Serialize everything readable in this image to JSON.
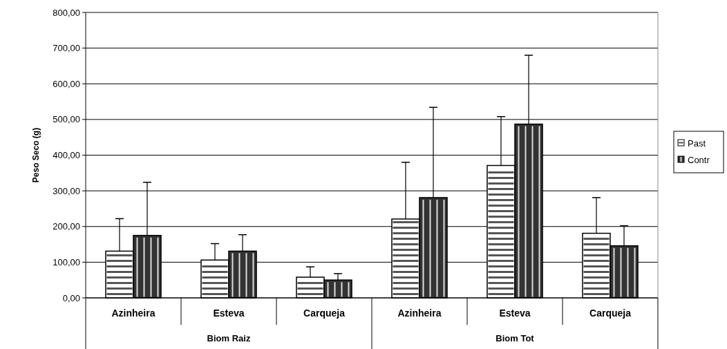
{
  "chart_data": {
    "type": "bar",
    "ylabel": "Peso Seco (g)",
    "categories": [
      "Azinheira",
      "Esteva",
      "Carqueja",
      "Azinheira",
      "Esteva",
      "Carqueja"
    ],
    "annotations": [
      "Biom Raiz",
      "Biom Tot"
    ],
    "series": [
      {
        "name": "Past",
        "color": "#ffffff",
        "values": [
          131,
          106,
          58,
          221,
          371,
          181
        ],
        "errors": [
          [
            131,
            222
          ],
          [
            106,
            152
          ],
          [
            58,
            87
          ],
          [
            221,
            380
          ],
          [
            371,
            508
          ],
          [
            181,
            281
          ]
        ]
      },
      {
        "name": "Contr",
        "color": "#333333",
        "values": [
          175,
          131,
          50,
          281,
          487,
          146
        ],
        "errors": [
          [
            175,
            324
          ],
          [
            131,
            177
          ],
          [
            50,
            68
          ],
          [
            281,
            534
          ],
          [
            487,
            680
          ],
          [
            146,
            202
          ]
        ]
      }
    ],
    "ylim": [
      0,
      800
    ],
    "yticks": [
      {
        "value": 0,
        "label": "0,00"
      },
      {
        "value": 100,
        "label": "100,00"
      },
      {
        "value": 200,
        "label": "200,00"
      },
      {
        "value": 300,
        "label": "300,00"
      },
      {
        "value": 400,
        "label": "400,00"
      },
      {
        "value": 500,
        "label": "500,00"
      },
      {
        "value": 600,
        "label": "600,00"
      },
      {
        "value": 700,
        "label": "700,00"
      },
      {
        "value": 800,
        "label": "800,00"
      }
    ],
    "grid": "y",
    "legend": "right"
  }
}
